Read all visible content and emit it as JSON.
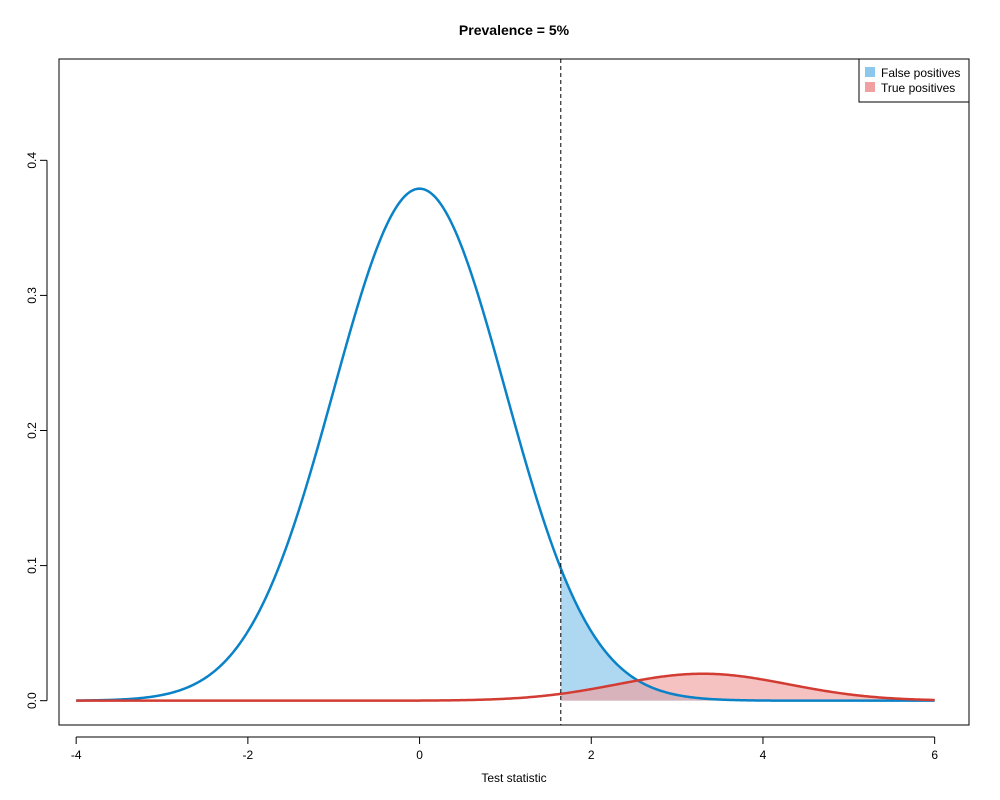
{
  "chart_data": {
    "type": "area",
    "title": "Prevalence = 5%",
    "xlabel": "Test statistic",
    "ylabel": "",
    "xlim": [
      -4.2,
      6.4
    ],
    "ylim": [
      -0.018,
      0.475
    ],
    "x_ticks": [
      -4,
      -2,
      0,
      2,
      4,
      6
    ],
    "x_tick_labels": [
      "-4",
      "-2",
      "0",
      "2",
      "4",
      "6"
    ],
    "y_ticks": [
      0.0,
      0.1,
      0.2,
      0.3,
      0.4
    ],
    "y_tick_labels": [
      "0.0",
      "0.1",
      "0.2",
      "0.3",
      "0.4"
    ],
    "threshold": 1.645,
    "x_range": [
      -4,
      6
    ],
    "grid": false,
    "legend_position": "top-right",
    "series": [
      {
        "name": "False positives",
        "curve": "null",
        "distribution": "normal",
        "mean": 0,
        "sd": 1,
        "weight": 0.95,
        "line_color": "#0A82C8",
        "fill_color": "#8CC8EB",
        "fill_opacity": 0.7,
        "shaded_region": "x >= threshold",
        "sample_points": [
          [
            -4,
            0.0001
          ],
          [
            -2,
            0.0513
          ],
          [
            -1,
            0.2299
          ],
          [
            0,
            0.379
          ],
          [
            1,
            0.2299
          ],
          [
            1.645,
            0.0984
          ],
          [
            2,
            0.0513
          ],
          [
            3,
            0.0042
          ],
          [
            4,
            0.0001
          ],
          [
            6,
            0.0
          ]
        ]
      },
      {
        "name": "True positives",
        "curve": "alternative",
        "distribution": "normal",
        "mean": 3.3,
        "sd": 1,
        "weight": 0.05,
        "line_color": "#D23C32",
        "fill_color": "#F0A0A0",
        "fill_opacity": 0.65,
        "shaded_region": "x >= threshold",
        "sample_points": [
          [
            -4,
            0.0
          ],
          [
            0,
            0.0001
          ],
          [
            1.645,
            0.0051
          ],
          [
            2,
            0.0086
          ],
          [
            3,
            0.0191
          ],
          [
            3.3,
            0.0199
          ],
          [
            4,
            0.0156
          ],
          [
            5,
            0.0047
          ],
          [
            6,
            0.0005
          ]
        ]
      }
    ],
    "legend": [
      {
        "label": "False positives",
        "color": "#8CC8EB"
      },
      {
        "label": "True positives",
        "color": "#F0A0A0"
      }
    ]
  }
}
